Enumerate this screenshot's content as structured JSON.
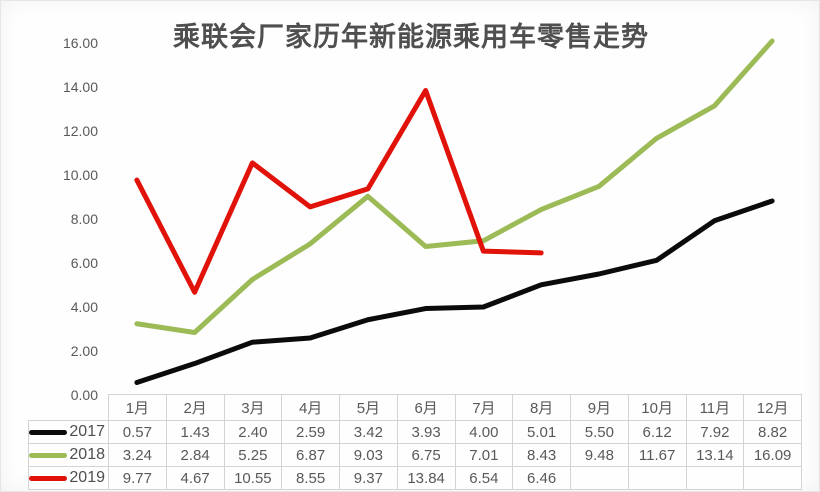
{
  "chart_data": {
    "type": "line",
    "title": "乘联会厂家历年新能源乘用车零售走势",
    "categories": [
      "1月",
      "2月",
      "3月",
      "4月",
      "5月",
      "6月",
      "7月",
      "8月",
      "9月",
      "10月",
      "11月",
      "12月"
    ],
    "series": [
      {
        "name": "2017",
        "color": "#0b0b0b",
        "values": [
          0.57,
          1.43,
          2.4,
          2.59,
          3.42,
          3.93,
          4.0,
          5.01,
          5.5,
          6.12,
          7.92,
          8.82
        ]
      },
      {
        "name": "2018",
        "color": "#9cba56",
        "values": [
          3.24,
          2.84,
          5.25,
          6.87,
          9.03,
          6.75,
          7.01,
          8.43,
          9.48,
          11.67,
          13.14,
          16.09
        ]
      },
      {
        "name": "2019",
        "color": "#e01209",
        "values": [
          9.77,
          4.67,
          10.55,
          8.55,
          9.37,
          13.84,
          6.54,
          6.46,
          null,
          null,
          null,
          null
        ]
      }
    ],
    "ylim": [
      0,
      16
    ],
    "y_tick_step": 2,
    "y_ticks": [
      "16.00",
      "14.00",
      "12.00",
      "10.00",
      "8.00",
      "6.00",
      "4.00",
      "2.00",
      "0.00"
    ],
    "grid": false,
    "legend_position": "data-table-left",
    "data_table_shown": true,
    "value_decimals": 2
  }
}
